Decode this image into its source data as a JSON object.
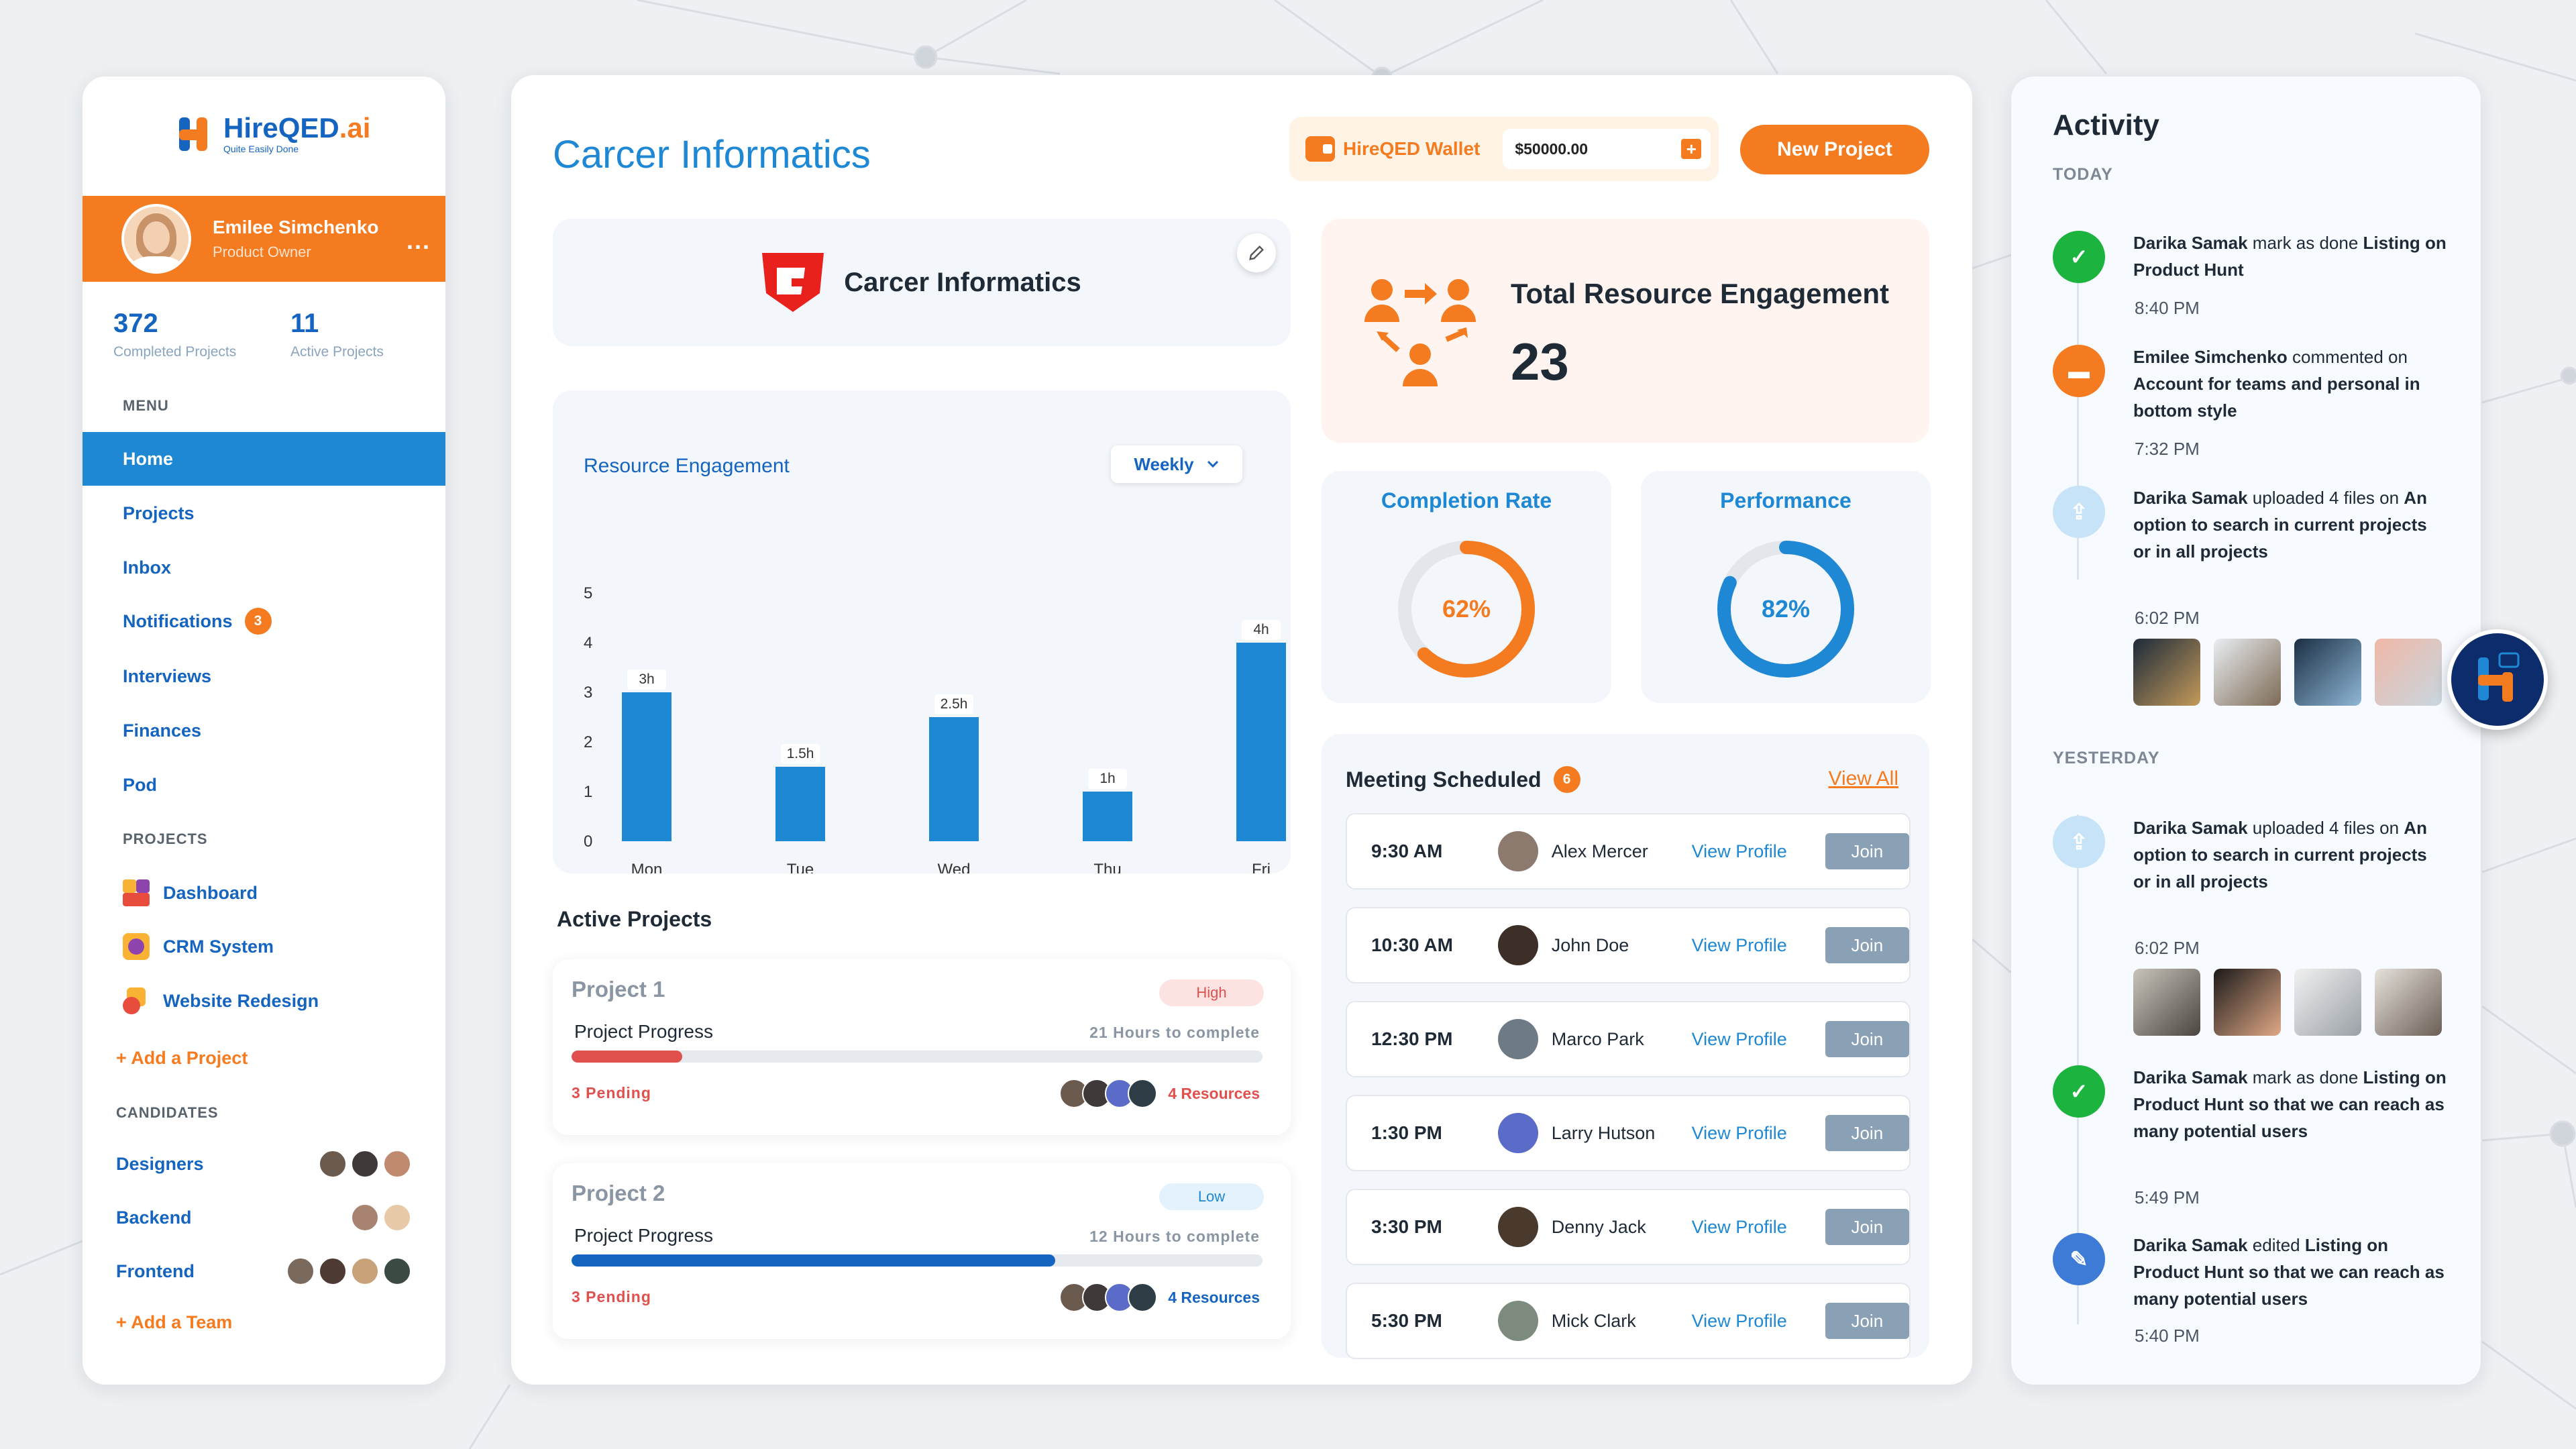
{
  "brand": {
    "name_main": "HireQED",
    "name_suffix": ".ai",
    "tagline": "Quite Easily Done"
  },
  "user": {
    "name": "Emilee Simchenko",
    "role": "Product Owner",
    "more": "..."
  },
  "stats": [
    {
      "value": "372",
      "label": "Completed Projects"
    },
    {
      "value": "11",
      "label": "Active Projects"
    }
  ],
  "menu": {
    "heading": "MENU",
    "items": [
      {
        "label": "Home",
        "active": true
      },
      {
        "label": "Projects"
      },
      {
        "label": "Inbox"
      },
      {
        "label": "Notifications",
        "badge": "3"
      },
      {
        "label": "Interviews"
      },
      {
        "label": "Finances"
      },
      {
        "label": "Pod"
      }
    ]
  },
  "projects_nav": {
    "heading": "PROJECTS",
    "items": [
      {
        "label": "Dashboard"
      },
      {
        "label": "CRM System"
      },
      {
        "label": "Website Redesign"
      }
    ],
    "add_label": "+ Add a Project"
  },
  "candidates": {
    "heading": "CANDIDATES",
    "items": [
      {
        "label": "Designers"
      },
      {
        "label": "Backend"
      },
      {
        "label": "Frontend"
      }
    ],
    "add_label": "+ Add a Team"
  },
  "main": {
    "title": "Carcer Informatics",
    "wallet": {
      "label": "HireQED Wallet",
      "amount": "$50000.00",
      "plus": "+"
    },
    "new_project": "New Project",
    "company_name": "Carcer Informatics"
  },
  "chart_data": {
    "type": "bar",
    "title": "Resource Engagement",
    "period": "Weekly",
    "categories": [
      "Mon",
      "Tue",
      "Wed",
      "Thu",
      "Fri"
    ],
    "values": [
      3,
      1.5,
      2.5,
      1,
      4
    ],
    "data_labels": [
      "3h",
      "1.5h",
      "2.5h",
      "1h",
      "4h"
    ],
    "yticks": [
      "0",
      "1",
      "2",
      "3",
      "4",
      "5"
    ],
    "ylim": [
      0,
      5
    ],
    "color": "#1e88d4"
  },
  "engagement": {
    "title": "Total Resource Engagement",
    "value": "23"
  },
  "completion": {
    "title": "Completion Rate",
    "label": "62%",
    "value": 0.62,
    "color": "#f47b20"
  },
  "performance": {
    "title": "Performance",
    "label": "82%",
    "value": 0.82,
    "color": "#1e88d4"
  },
  "meetings": {
    "title": "Meeting Scheduled",
    "count": "6",
    "view_all": "View All",
    "view_profile": "View Profile",
    "join": "Join",
    "rows": [
      {
        "time": "9:30 AM",
        "name": "Alex Mercer"
      },
      {
        "time": "10:30 AM",
        "name": "John Doe"
      },
      {
        "time": "12:30 PM",
        "name": "Marco Park"
      },
      {
        "time": "1:30 PM",
        "name": "Larry Hutson"
      },
      {
        "time": "3:30 PM",
        "name": "Denny Jack"
      },
      {
        "time": "5:30 PM",
        "name": "Mick Clark"
      }
    ]
  },
  "active_projects": {
    "title": "Active Projects",
    "items": [
      {
        "name": "Project 1",
        "priority": "High",
        "progress_label": "Project Progress",
        "hours": "21 Hours to complete",
        "progress": 0.16,
        "pending": "3 Pending",
        "resources": "4 Resources",
        "bar_color": "#e0504d",
        "res_color": "#e0504d"
      },
      {
        "name": "Project 2",
        "priority": "Low",
        "progress_label": "Project Progress",
        "hours": "12 Hours to complete",
        "progress": 0.7,
        "pending": "3 Pending",
        "resources": "4 Resources",
        "bar_color": "#1565c0",
        "res_color": "#1565c0"
      }
    ]
  },
  "activity": {
    "title": "Activity",
    "today": "TODAY",
    "yesterday": "YESTERDAY",
    "entries": [
      {
        "actor": "Darika Samak",
        "verb": " mark as done ",
        "object": "Listing on Product Hunt",
        "time": "8:40 PM"
      },
      {
        "actor": "Emilee Simchenko",
        "verb": " commented on ",
        "object": "Account for teams and personal in bottom style",
        "time": "7:32 PM"
      },
      {
        "actor": "Darika Samak",
        "verb": " uploaded 4 files on ",
        "object": "An option to search in current projects or in all projects",
        "time": "6:02 PM"
      },
      {
        "actor": "Darika Samak",
        "verb": " uploaded 4 files on ",
        "object": "An option to search in current projects or in all projects",
        "time": "6:02 PM"
      },
      {
        "actor": "Darika Samak",
        "verb": " mark as done ",
        "object": "Listing on Product Hunt so that we can reach as many potential users",
        "time": "5:49 PM"
      },
      {
        "actor": "Darika Samak",
        "verb": " edited ",
        "object": "Listing on Product Hunt so that we can reach as many potential users",
        "time": "5:40 PM"
      }
    ]
  }
}
